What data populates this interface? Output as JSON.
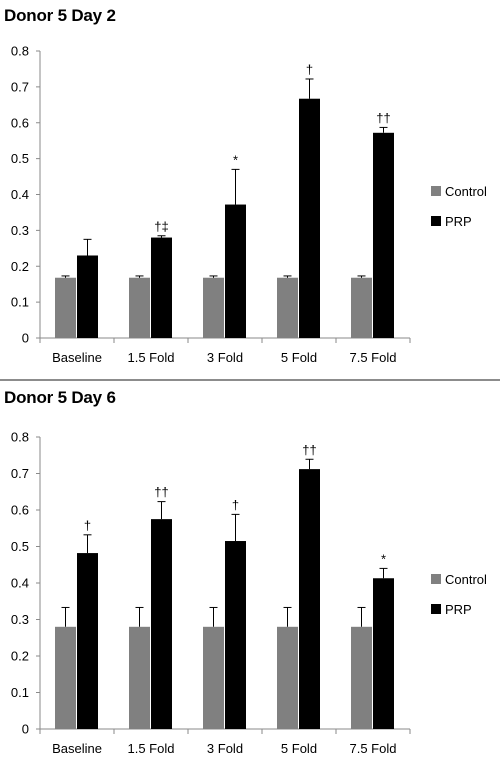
{
  "chart_data": [
    {
      "type": "bar",
      "title": "Donor 5 Day 2",
      "categories": [
        "Baseline",
        "1.5 Fold",
        "3 Fold",
        "5 Fold",
        "7.5 Fold"
      ],
      "series": [
        {
          "name": "Control",
          "color": "#808080",
          "values": [
            0.168,
            0.168,
            0.168,
            0.168,
            0.168
          ],
          "errors": [
            0.005,
            0.005,
            0.005,
            0.005,
            0.005
          ]
        },
        {
          "name": "PRP",
          "color": "#000000",
          "values": [
            0.23,
            0.28,
            0.372,
            0.667,
            0.572
          ],
          "errors": [
            0.045,
            0.005,
            0.098,
            0.055,
            0.015
          ]
        }
      ],
      "annotations": [
        "",
        "†‡",
        "*",
        "†",
        "††"
      ],
      "ylim": [
        0,
        0.8
      ],
      "yticks": [
        "0",
        "0.1",
        "0.2",
        "0.3",
        "0.4",
        "0.5",
        "0.6",
        "0.7",
        "0.8"
      ],
      "grid": false,
      "legend": "right"
    },
    {
      "type": "bar",
      "title": "Donor 5 Day 6",
      "categories": [
        "Baseline",
        "1.5 Fold",
        "3 Fold",
        "5 Fold",
        "7.5 Fold"
      ],
      "series": [
        {
          "name": "Control",
          "color": "#808080",
          "values": [
            0.28,
            0.28,
            0.28,
            0.28,
            0.28
          ],
          "errors": [
            0.053,
            0.053,
            0.053,
            0.053,
            0.053
          ]
        },
        {
          "name": "PRP",
          "color": "#000000",
          "values": [
            0.482,
            0.575,
            0.515,
            0.712,
            0.413
          ],
          "errors": [
            0.05,
            0.048,
            0.073,
            0.027,
            0.027
          ]
        }
      ],
      "annotations": [
        "†",
        "††",
        "†",
        "††",
        "*"
      ],
      "ylim": [
        0,
        0.8
      ],
      "yticks": [
        "0",
        "0.1",
        "0.2",
        "0.3",
        "0.4",
        "0.5",
        "0.6",
        "0.7",
        "0.8"
      ],
      "grid": false,
      "legend": "right"
    }
  ]
}
